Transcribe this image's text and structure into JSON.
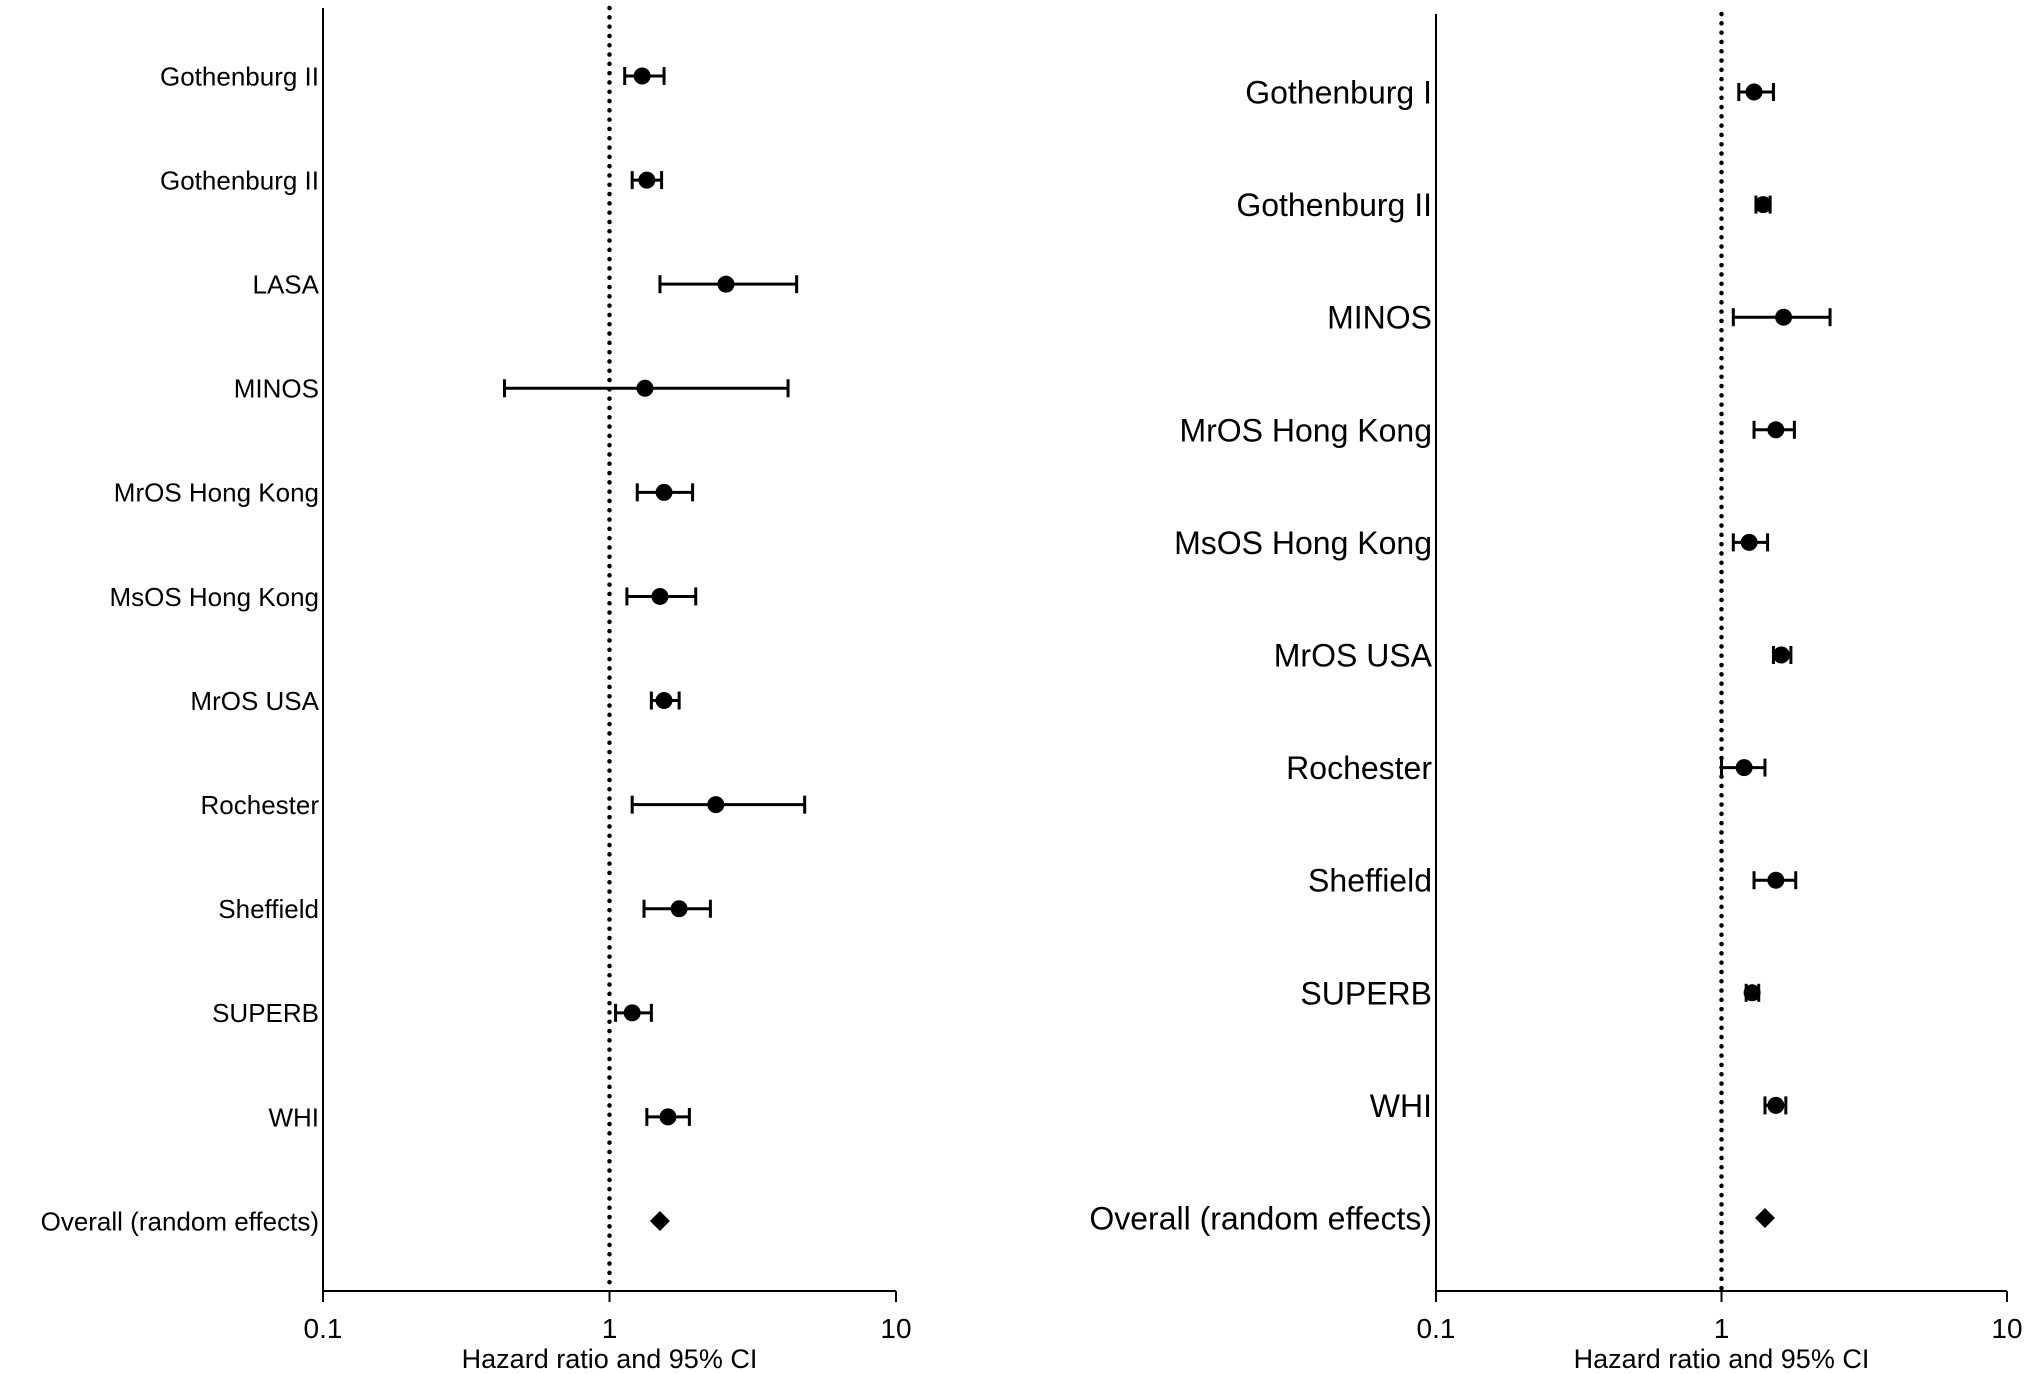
{
  "chart_data": [
    {
      "type": "forest",
      "x_scale": "log",
      "xlim": [
        0.1,
        10
      ],
      "x_ticks": [
        {
          "value": 0.1,
          "label": "0.1"
        },
        {
          "value": 1,
          "label": "1"
        },
        {
          "value": 10,
          "label": "10"
        }
      ],
      "xlabel": "Hazard ratio and 95% CI",
      "reference_line": {
        "value": 1,
        "style": "dotted"
      },
      "grid": false,
      "studies": [
        {
          "label": "Gothenburg II",
          "hr": 1.3,
          "lower": 1.13,
          "upper": 1.55,
          "marker": "circle"
        },
        {
          "label": "Gothenburg II",
          "hr": 1.35,
          "lower": 1.2,
          "upper": 1.52,
          "marker": "circle"
        },
        {
          "label": "LASA",
          "hr": 2.55,
          "lower": 1.5,
          "upper": 4.5,
          "marker": "circle"
        },
        {
          "label": "MINOS",
          "hr": 1.33,
          "lower": 0.43,
          "upper": 4.2,
          "marker": "circle"
        },
        {
          "label": "MrOS Hong Kong",
          "hr": 1.55,
          "lower": 1.25,
          "upper": 1.95,
          "marker": "circle"
        },
        {
          "label": "MsOS Hong Kong",
          "hr": 1.5,
          "lower": 1.15,
          "upper": 2.0,
          "marker": "circle"
        },
        {
          "label": "MrOS USA",
          "hr": 1.55,
          "lower": 1.4,
          "upper": 1.75,
          "marker": "circle"
        },
        {
          "label": "Rochester",
          "hr": 2.35,
          "lower": 1.2,
          "upper": 4.8,
          "marker": "circle"
        },
        {
          "label": "Sheffield",
          "hr": 1.75,
          "lower": 1.32,
          "upper": 2.25,
          "marker": "circle"
        },
        {
          "label": "SUPERB",
          "hr": 1.2,
          "lower": 1.05,
          "upper": 1.4,
          "marker": "circle"
        },
        {
          "label": "WHI",
          "hr": 1.6,
          "lower": 1.35,
          "upper": 1.9,
          "marker": "circle"
        },
        {
          "label": "Overall (random effects)",
          "hr": 1.5,
          "lower": null,
          "upper": null,
          "marker": "diamond"
        }
      ]
    },
    {
      "type": "forest",
      "x_scale": "log",
      "xlim": [
        0.1,
        10
      ],
      "x_ticks": [
        {
          "value": 0.1,
          "label": "0.1"
        },
        {
          "value": 1,
          "label": "1"
        },
        {
          "value": 10,
          "label": "10"
        }
      ],
      "xlabel": "Hazard ratio and 95% CI",
      "reference_line": {
        "value": 1,
        "style": "dotted"
      },
      "grid": false,
      "studies": [
        {
          "label": "Gothenburg I",
          "hr": 1.3,
          "lower": 1.15,
          "upper": 1.52,
          "marker": "circle"
        },
        {
          "label": "Gothenburg II",
          "hr": 1.4,
          "lower": 1.32,
          "upper": 1.48,
          "marker": "circle"
        },
        {
          "label": "MINOS",
          "hr": 1.65,
          "lower": 1.1,
          "upper": 2.4,
          "marker": "circle"
        },
        {
          "label": "MrOS Hong Kong",
          "hr": 1.55,
          "lower": 1.3,
          "upper": 1.8,
          "marker": "circle"
        },
        {
          "label": "MsOS Hong Kong",
          "hr": 1.25,
          "lower": 1.1,
          "upper": 1.45,
          "marker": "circle"
        },
        {
          "label": "MrOS USA",
          "hr": 1.62,
          "lower": 1.52,
          "upper": 1.75,
          "marker": "circle"
        },
        {
          "label": "Rochester",
          "hr": 1.2,
          "lower": 1.0,
          "upper": 1.42,
          "marker": "circle"
        },
        {
          "label": "Sheffield",
          "hr": 1.55,
          "lower": 1.3,
          "upper": 1.82,
          "marker": "circle"
        },
        {
          "label": "SUPERB",
          "hr": 1.28,
          "lower": 1.22,
          "upper": 1.35,
          "marker": "circle"
        },
        {
          "label": "WHI",
          "hr": 1.55,
          "lower": 1.42,
          "upper": 1.68,
          "marker": "circle"
        },
        {
          "label": "Overall (random effects)",
          "hr": 1.42,
          "lower": null,
          "upper": null,
          "marker": "diamond"
        }
      ]
    }
  ]
}
